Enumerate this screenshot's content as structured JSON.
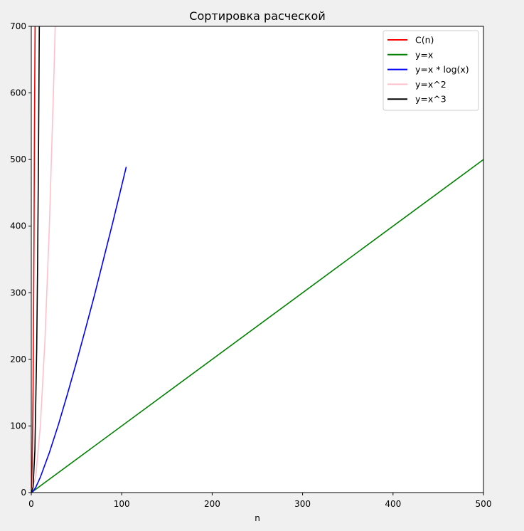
{
  "chart_data": {
    "type": "line",
    "title": "Сортировка расческой",
    "xlabel": "n",
    "ylabel": "",
    "xlim": [
      0,
      500
    ],
    "ylim": [
      0,
      700
    ],
    "xticks": [
      0,
      100,
      200,
      300,
      400,
      500
    ],
    "yticks": [
      0,
      100,
      200,
      300,
      400,
      500,
      600,
      700
    ],
    "grid": false,
    "legend_position": "top-right",
    "series": [
      {
        "name": "C(n)",
        "color": "#ff0000",
        "x": [
          0,
          1,
          2,
          3,
          3.5,
          4.2
        ],
        "y": [
          0,
          40,
          160,
          380,
          540,
          700
        ]
      },
      {
        "name": "y=x",
        "color": "#008000",
        "x": [
          0,
          500
        ],
        "y": [
          0,
          500
        ]
      },
      {
        "name": "y=x * log(x)",
        "color": "#0000ff",
        "x": [
          1,
          5,
          10,
          20,
          30,
          40,
          50,
          60,
          70,
          80,
          90,
          100,
          105
        ],
        "y": [
          0,
          8,
          23,
          60,
          102,
          148,
          196,
          246,
          297,
          351,
          405,
          461,
          489
        ]
      },
      {
        "name": "y=x^2",
        "color": "#ffc0cb",
        "x": [
          0,
          5,
          10,
          15,
          20,
          25,
          26.5
        ],
        "y": [
          0,
          25,
          100,
          225,
          400,
          625,
          702
        ]
      },
      {
        "name": "y=x^3",
        "color": "#000000",
        "x": [
          0,
          2,
          4,
          6,
          7,
          8,
          8.9
        ],
        "y": [
          0,
          8,
          64,
          216,
          343,
          512,
          705
        ]
      }
    ]
  }
}
